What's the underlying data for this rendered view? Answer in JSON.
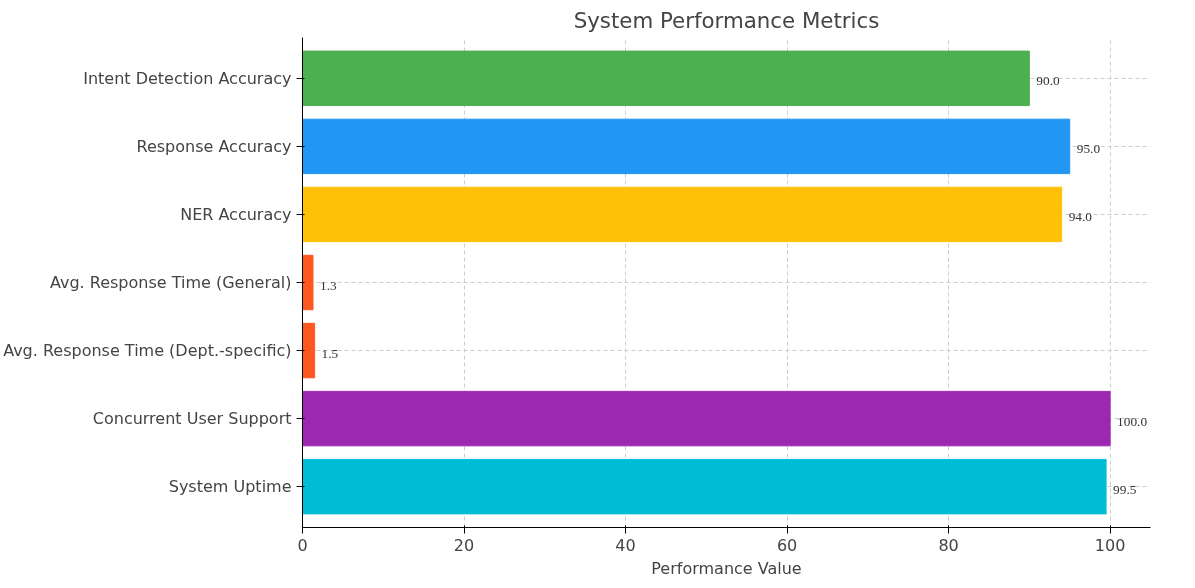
{
  "chart_data": {
    "type": "bar",
    "orientation": "horizontal",
    "title": "System Performance Metrics",
    "xlabel": "Performance Value",
    "categories": [
      "Intent Detection Accuracy",
      "Response Accuracy",
      "NER Accuracy",
      "Avg. Response Time (General)",
      "Avg. Response Time (Dept.-specific)",
      "Concurrent User Support",
      "System Uptime"
    ],
    "values": [
      90,
      95,
      94,
      1.3,
      1.5,
      100,
      99.5
    ],
    "value_labels": [
      "90.0",
      "95.0",
      "94.0",
      "1.3",
      "1.5",
      "100.0",
      "99.5"
    ],
    "colors": [
      "#4caf50",
      "#2196f3",
      "#ffc107",
      "#ff5722",
      "#ff5722",
      "#9c27b0",
      "#00bcd4"
    ],
    "xlim": [
      0,
      105
    ],
    "xticks": [
      0,
      20,
      40,
      60,
      80,
      100
    ],
    "grid": true
  }
}
